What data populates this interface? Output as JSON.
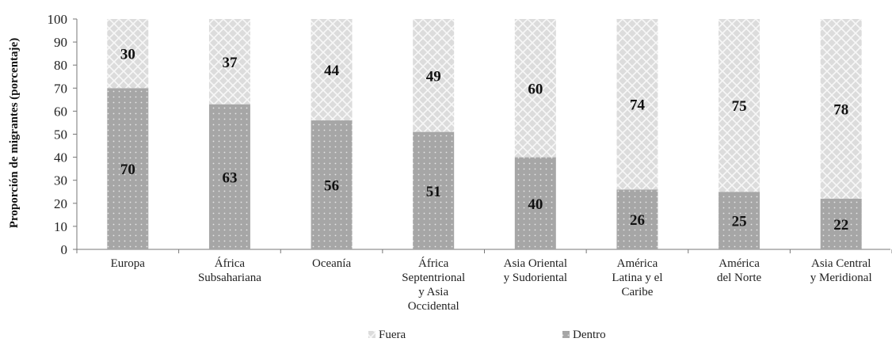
{
  "chart_data": {
    "type": "bar",
    "stacked": true,
    "percent_stacked": true,
    "title": "",
    "xlabel": "",
    "ylabel": "Proporción de migrantes (porcentaje)",
    "ylim": [
      0,
      100
    ],
    "yticks": [
      0,
      10,
      20,
      30,
      40,
      50,
      60,
      70,
      80,
      90,
      100
    ],
    "grid": false,
    "legend_position": "bottom",
    "categories": [
      [
        "Europa"
      ],
      [
        "África",
        "Subsahariana"
      ],
      [
        "Oceanía"
      ],
      [
        "África",
        "Septentrional",
        "y Asia",
        "Occidental"
      ],
      [
        "Asia Oriental",
        "y Sudoriental"
      ],
      [
        "América",
        "Latina y el",
        "Caribe"
      ],
      [
        "América",
        "del Norte"
      ],
      [
        "Asia Central",
        "y Meridional"
      ]
    ],
    "series": [
      {
        "name": "Dentro",
        "color": "#a6a6a6",
        "values": [
          70,
          63,
          56,
          51,
          40,
          26,
          25,
          22
        ]
      },
      {
        "name": "Fuera",
        "color": "#d9d9d9",
        "values": [
          30,
          37,
          44,
          49,
          60,
          74,
          75,
          78
        ]
      }
    ],
    "legend": [
      "Fuera",
      "Dentro"
    ]
  }
}
